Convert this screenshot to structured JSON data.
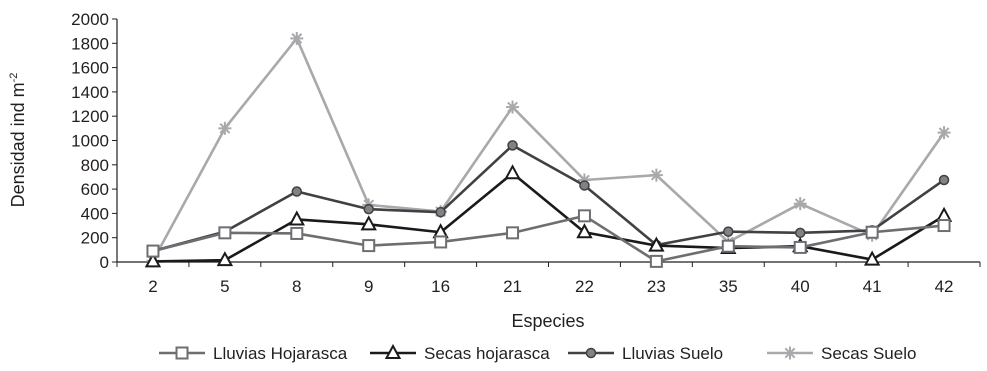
{
  "chart_data": {
    "type": "line",
    "title": "",
    "xlabel": "Especies",
    "ylabel": "Densidad ind m",
    "ylabel_superscript": "-2",
    "categories": [
      "2",
      "5",
      "8",
      "9",
      "16",
      "21",
      "22",
      "23",
      "35",
      "40",
      "41",
      "42"
    ],
    "ylim": [
      0,
      2000
    ],
    "yticks": [
      "0",
      "200",
      "400",
      "600",
      "800",
      "1000",
      "1200",
      "1400",
      "1600",
      "1800",
      "2000"
    ],
    "grid": false,
    "legend_position": "bottom",
    "series": [
      {
        "name": "Lluvias Hojarasca",
        "marker": "square",
        "color": "#6d6e71",
        "values": [
          90,
          240,
          235,
          135,
          165,
          240,
          380,
          5,
          130,
          120,
          245,
          300
        ]
      },
      {
        "name": "Secas hojarasca",
        "marker": "triangle",
        "color": "#1a1a1a",
        "values": [
          5,
          15,
          350,
          310,
          245,
          730,
          245,
          135,
          115,
          130,
          20,
          380
        ]
      },
      {
        "name": "Lluvias Suelo",
        "marker": "circle",
        "color": "#414042",
        "values": [
          90,
          250,
          580,
          435,
          410,
          960,
          630,
          140,
          250,
          240,
          260,
          675
        ]
      },
      {
        "name": "Secas Suelo",
        "marker": "star",
        "color": "#a7a9ac",
        "values": [
          10,
          1100,
          1840,
          470,
          415,
          1275,
          675,
          715,
          165,
          480,
          220,
          1065
        ]
      }
    ]
  }
}
